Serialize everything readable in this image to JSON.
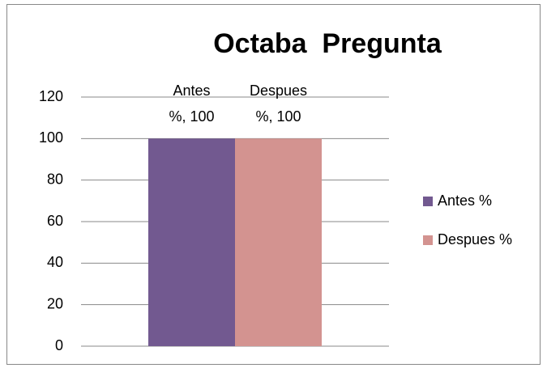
{
  "chart_data": {
    "type": "bar",
    "title": "Octaba  Pregunta",
    "categories": [
      null
    ],
    "series": [
      {
        "name": "Antes %",
        "color": "#725990",
        "values": [
          100
        ],
        "value_labels": [
          "Antes %, 100"
        ]
      },
      {
        "name": "Despues %",
        "color": "#d39390",
        "values": [
          100
        ],
        "value_labels": [
          "Despues %, 100"
        ]
      }
    ],
    "ylim": [
      0,
      120
    ],
    "yticks": [
      0,
      20,
      40,
      60,
      80,
      100,
      120
    ],
    "grid": true,
    "legend": "right"
  }
}
